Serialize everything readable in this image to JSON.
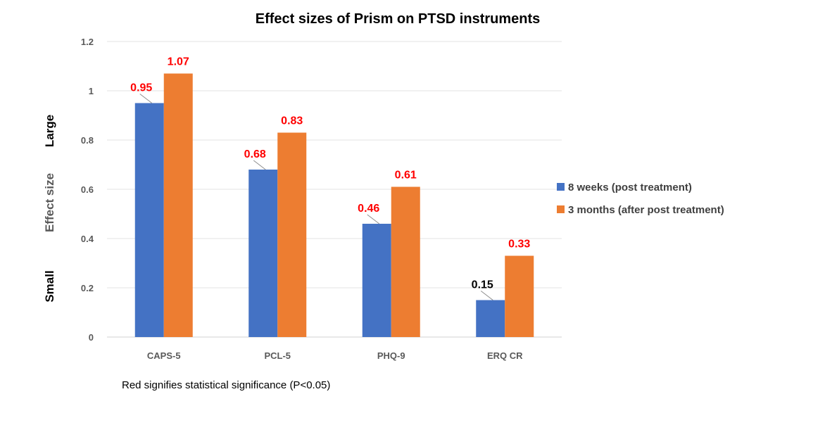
{
  "chart_data": {
    "type": "bar",
    "title": "Effect sizes of Prism on PTSD instruments",
    "categories": [
      "CAPS-5",
      "PCL-5",
      "PHQ-9",
      "ERQ CR"
    ],
    "series": [
      {
        "name": "8 weeks (post treatment)",
        "color": "#4472C4",
        "values": [
          0.95,
          0.68,
          0.46,
          0.15
        ],
        "value_labels": [
          "0.95",
          "0.68",
          "0.46",
          "0.15"
        ],
        "significant": [
          true,
          true,
          true,
          false
        ]
      },
      {
        "name": "3 months (after post treatment)",
        "color": "#ED7D31",
        "values": [
          1.07,
          0.83,
          0.61,
          0.33
        ],
        "value_labels": [
          "1.07",
          "0.83",
          "0.61",
          "0.33"
        ],
        "significant": [
          true,
          true,
          true,
          true
        ]
      }
    ],
    "ylim": [
      0,
      1.2
    ],
    "yticks": [
      "0",
      "0.2",
      "0.4",
      "0.6",
      "0.8",
      "1",
      "1.2"
    ],
    "ylabel": "Effect size",
    "ylabel_large": "Large",
    "ylabel_small": "Small",
    "grid": true,
    "legend_position": "right",
    "significant_color": "#FF0000",
    "nonsignificant_color": "#000000",
    "footnote": "Red signifies statistical significance (P<0.05)"
  }
}
